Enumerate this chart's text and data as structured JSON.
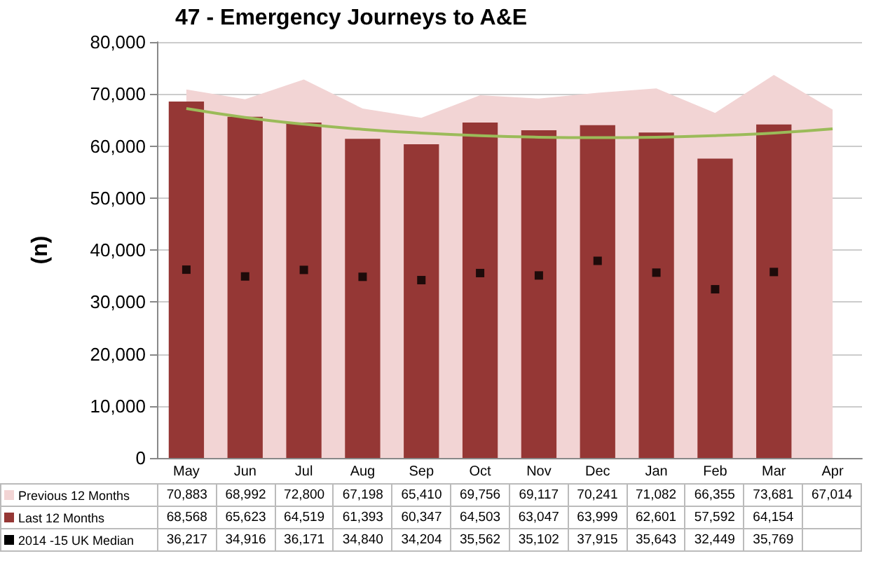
{
  "chart_data": {
    "type": "bar",
    "title": "47 - Emergency Journeys to A&E",
    "ylabel": "(n)",
    "categories": [
      "May",
      "Jun",
      "Jul",
      "Aug",
      "Sep",
      "Oct",
      "Nov",
      "Dec",
      "Jan",
      "Feb",
      "Mar",
      "Apr"
    ],
    "series": [
      {
        "name": "Previous 12 Months",
        "type": "area",
        "color": "#f2d4d4",
        "values": [
          70883,
          68992,
          72800,
          67198,
          65410,
          69756,
          69117,
          70241,
          71082,
          66355,
          73681,
          67014
        ],
        "value_labels": [
          "70,883",
          "68,992",
          "72,800",
          "67,198",
          "65,410",
          "69,756",
          "69,117",
          "70,241",
          "71,082",
          "66,355",
          "73,681",
          "67,014"
        ]
      },
      {
        "name": "Last 12 Months",
        "type": "bar",
        "color": "#953735",
        "values": [
          68568,
          65623,
          64519,
          61393,
          60347,
          64503,
          63047,
          63999,
          62601,
          57592,
          64154,
          null
        ],
        "value_labels": [
          "68,568",
          "65,623",
          "64,519",
          "61,393",
          "60,347",
          "64,503",
          "63,047",
          "63,999",
          "62,601",
          "57,592",
          "64,154",
          null
        ]
      },
      {
        "name": "2014 -15 UK Median",
        "type": "scatter",
        "color": "#000000",
        "marker": "square",
        "values": [
          36217,
          34916,
          36171,
          34840,
          34204,
          35562,
          35102,
          37915,
          35643,
          32449,
          35769,
          null
        ],
        "value_labels": [
          "36,217",
          "34,916",
          "36,171",
          "34,840",
          "34,204",
          "35,562",
          "35,102",
          "37,915",
          "35,643",
          "32,449",
          "35,769",
          null
        ]
      },
      {
        "type": "line",
        "color": "#9bbb59",
        "marker": "none",
        "values": [
          67200,
          65500,
          64200,
          63200,
          62500,
          62000,
          61700,
          61600,
          61700,
          62000,
          62500,
          63300
        ]
      }
    ],
    "ylim": [
      0,
      80000
    ],
    "yticks": [
      0,
      {
        "value": 10000,
        "label": "10,000"
      },
      {
        "value": 20000,
        "label": "20,000"
      },
      {
        "value": 30000,
        "label": "30,000"
      },
      {
        "value": 40000,
        "label": "40,000"
      },
      {
        "value": 50000,
        "label": "50,000"
      },
      {
        "value": 60000,
        "label": "60,000"
      },
      {
        "value": 70000,
        "label": "70,000"
      },
      {
        "value": 80000,
        "label": "80,000"
      }
    ],
    "grid": "y",
    "legend": "bottom"
  }
}
